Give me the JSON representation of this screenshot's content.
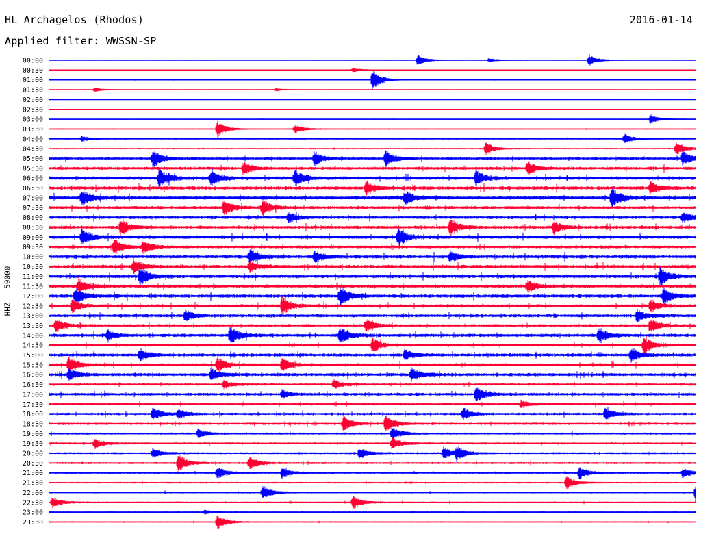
{
  "header": {
    "station": "HL Archagelos (Rhodos)",
    "date": "2016-01-14",
    "filter": "Applied filter: WWSSN-SP"
  },
  "chart_data": {
    "type": "line",
    "title": "HL Archagelos (Rhodos)",
    "subtitle": "Applied filter: WWSSN-SP",
    "ylabel": "HHZ - 50000",
    "xlabel": "",
    "grid": false,
    "legend": "none",
    "series_colors": [
      "#0000ff",
      "#ff0033"
    ],
    "rows": [
      "00:00",
      "00:30",
      "01:00",
      "01:30",
      "02:00",
      "02:30",
      "03:00",
      "03:30",
      "04:00",
      "04:30",
      "05:00",
      "05:30",
      "06:00",
      "06:30",
      "07:00",
      "07:30",
      "08:00",
      "08:30",
      "09:00",
      "09:30",
      "10:00",
      "10:30",
      "11:00",
      "11:30",
      "12:00",
      "12:30",
      "13:00",
      "13:30",
      "14:00",
      "14:30",
      "15:00",
      "15:30",
      "16:00",
      "16:30",
      "17:00",
      "17:30",
      "18:00",
      "18:30",
      "19:00",
      "19:30",
      "20:00",
      "20:30",
      "21:00",
      "21:30",
      "22:00",
      "22:30",
      "23:00",
      "23:30"
    ],
    "noise_level": [
      0.15,
      0.2,
      0.25,
      0.2,
      0.2,
      0.15,
      0.25,
      0.4,
      0.6,
      0.5,
      1.2,
      1.5,
      1.8,
      1.8,
      1.8,
      1.6,
      1.6,
      1.6,
      1.8,
      1.4,
      1.8,
      1.8,
      1.8,
      1.6,
      1.8,
      1.6,
      1.6,
      1.4,
      1.6,
      1.4,
      1.6,
      1.6,
      1.6,
      1.2,
      1.4,
      1.2,
      1.2,
      1.1,
      1.0,
      1.0,
      0.9,
      0.9,
      0.9,
      0.7,
      0.7,
      0.7,
      0.6,
      0.5
    ],
    "events": [
      {
        "row": "00:00",
        "t": 0.57,
        "amp": 8
      },
      {
        "row": "00:00",
        "t": 0.835,
        "amp": 9
      },
      {
        "row": "00:00",
        "t": 0.68,
        "amp": 3
      },
      {
        "row": "00:30",
        "t": 0.47,
        "amp": 3
      },
      {
        "row": "01:00",
        "t": 0.5,
        "amp": 16
      },
      {
        "row": "01:30",
        "t": 0.07,
        "amp": 3
      },
      {
        "row": "01:30",
        "t": 0.35,
        "amp": 2
      },
      {
        "row": "03:00",
        "t": 0.93,
        "amp": 7
      },
      {
        "row": "03:30",
        "t": 0.26,
        "amp": 12
      },
      {
        "row": "03:30",
        "t": 0.38,
        "amp": 6
      },
      {
        "row": "04:00",
        "t": 0.05,
        "amp": 4
      },
      {
        "row": "04:00",
        "t": 0.89,
        "amp": 7
      },
      {
        "row": "04:30",
        "t": 0.675,
        "amp": 9
      },
      {
        "row": "04:30",
        "t": 0.97,
        "amp": 10
      },
      {
        "row": "05:00",
        "t": 0.16,
        "amp": 14
      },
      {
        "row": "05:00",
        "t": 0.41,
        "amp": 10
      },
      {
        "row": "05:00",
        "t": 0.52,
        "amp": 12
      },
      {
        "row": "05:00",
        "t": 0.98,
        "amp": 11
      },
      {
        "row": "05:30",
        "t": 0.3,
        "amp": 9
      },
      {
        "row": "05:30",
        "t": 0.74,
        "amp": 10
      },
      {
        "row": "06:00",
        "t": 0.17,
        "amp": 14
      },
      {
        "row": "06:00",
        "t": 0.25,
        "amp": 12
      },
      {
        "row": "06:00",
        "t": 0.38,
        "amp": 12
      },
      {
        "row": "06:00",
        "t": 0.66,
        "amp": 11
      },
      {
        "row": "06:30",
        "t": 0.49,
        "amp": 10
      },
      {
        "row": "06:30",
        "t": 0.93,
        "amp": 9
      },
      {
        "row": "07:00",
        "t": 0.05,
        "amp": 12
      },
      {
        "row": "07:00",
        "t": 0.55,
        "amp": 10
      },
      {
        "row": "07:00",
        "t": 0.87,
        "amp": 14
      },
      {
        "row": "07:30",
        "t": 0.27,
        "amp": 12
      },
      {
        "row": "07:30",
        "t": 0.33,
        "amp": 11
      },
      {
        "row": "08:00",
        "t": 0.37,
        "amp": 8
      },
      {
        "row": "08:00",
        "t": 0.98,
        "amp": 8
      },
      {
        "row": "08:30",
        "t": 0.11,
        "amp": 13
      },
      {
        "row": "08:30",
        "t": 0.62,
        "amp": 12
      },
      {
        "row": "08:30",
        "t": 0.78,
        "amp": 10
      },
      {
        "row": "09:00",
        "t": 0.05,
        "amp": 11
      },
      {
        "row": "09:00",
        "t": 0.54,
        "amp": 13
      },
      {
        "row": "09:30",
        "t": 0.1,
        "amp": 12
      },
      {
        "row": "09:30",
        "t": 0.145,
        "amp": 9
      },
      {
        "row": "10:00",
        "t": 0.31,
        "amp": 11
      },
      {
        "row": "10:00",
        "t": 0.41,
        "amp": 9
      },
      {
        "row": "10:00",
        "t": 0.62,
        "amp": 8
      },
      {
        "row": "10:30",
        "t": 0.13,
        "amp": 10
      },
      {
        "row": "10:30",
        "t": 0.31,
        "amp": 8
      },
      {
        "row": "11:00",
        "t": 0.14,
        "amp": 13
      },
      {
        "row": "11:00",
        "t": 0.945,
        "amp": 14
      },
      {
        "row": "11:30",
        "t": 0.045,
        "amp": 11
      },
      {
        "row": "11:30",
        "t": 0.74,
        "amp": 9
      },
      {
        "row": "12:00",
        "t": 0.04,
        "amp": 12
      },
      {
        "row": "12:00",
        "t": 0.45,
        "amp": 14
      },
      {
        "row": "12:00",
        "t": 0.95,
        "amp": 12
      },
      {
        "row": "12:30",
        "t": 0.035,
        "amp": 10
      },
      {
        "row": "12:30",
        "t": 0.36,
        "amp": 14
      },
      {
        "row": "12:30",
        "t": 0.93,
        "amp": 9
      },
      {
        "row": "13:00",
        "t": 0.21,
        "amp": 8
      },
      {
        "row": "13:00",
        "t": 0.91,
        "amp": 9
      },
      {
        "row": "13:30",
        "t": 0.01,
        "amp": 10
      },
      {
        "row": "13:30",
        "t": 0.49,
        "amp": 9
      },
      {
        "row": "13:30",
        "t": 0.93,
        "amp": 10
      },
      {
        "row": "14:00",
        "t": 0.09,
        "amp": 7
      },
      {
        "row": "14:00",
        "t": 0.28,
        "amp": 14
      },
      {
        "row": "14:00",
        "t": 0.45,
        "amp": 12
      },
      {
        "row": "14:00",
        "t": 0.85,
        "amp": 10
      },
      {
        "row": "14:30",
        "t": 0.5,
        "amp": 10
      },
      {
        "row": "14:30",
        "t": 0.92,
        "amp": 12
      },
      {
        "row": "15:00",
        "t": 0.14,
        "amp": 9
      },
      {
        "row": "15:00",
        "t": 0.9,
        "amp": 11
      },
      {
        "row": "15:00",
        "t": 0.55,
        "amp": 8
      },
      {
        "row": "15:30",
        "t": 0.03,
        "amp": 12
      },
      {
        "row": "15:30",
        "t": 0.26,
        "amp": 11
      },
      {
        "row": "15:30",
        "t": 0.36,
        "amp": 10
      },
      {
        "row": "16:00",
        "t": 0.03,
        "amp": 8
      },
      {
        "row": "16:00",
        "t": 0.25,
        "amp": 9
      },
      {
        "row": "16:00",
        "t": 0.56,
        "amp": 10
      },
      {
        "row": "16:30",
        "t": 0.27,
        "amp": 6
      },
      {
        "row": "16:30",
        "t": 0.44,
        "amp": 7
      },
      {
        "row": "17:00",
        "t": 0.36,
        "amp": 6
      },
      {
        "row": "17:00",
        "t": 0.66,
        "amp": 11
      },
      {
        "row": "17:30",
        "t": 0.73,
        "amp": 5
      },
      {
        "row": "18:00",
        "t": 0.16,
        "amp": 9
      },
      {
        "row": "18:00",
        "t": 0.2,
        "amp": 7
      },
      {
        "row": "18:00",
        "t": 0.64,
        "amp": 9
      },
      {
        "row": "18:00",
        "t": 0.86,
        "amp": 9
      },
      {
        "row": "18:30",
        "t": 0.455,
        "amp": 11
      },
      {
        "row": "18:30",
        "t": 0.52,
        "amp": 12
      },
      {
        "row": "19:00",
        "t": 0.23,
        "amp": 6
      },
      {
        "row": "19:00",
        "t": 0.53,
        "amp": 10
      },
      {
        "row": "19:30",
        "t": 0.07,
        "amp": 7
      },
      {
        "row": "19:30",
        "t": 0.53,
        "amp": 9
      },
      {
        "row": "20:00",
        "t": 0.16,
        "amp": 7
      },
      {
        "row": "20:00",
        "t": 0.48,
        "amp": 8
      },
      {
        "row": "20:00",
        "t": 0.61,
        "amp": 9
      },
      {
        "row": "20:00",
        "t": 0.63,
        "amp": 10
      },
      {
        "row": "20:30",
        "t": 0.2,
        "amp": 13
      },
      {
        "row": "20:30",
        "t": 0.31,
        "amp": 10
      },
      {
        "row": "21:00",
        "t": 0.26,
        "amp": 9
      },
      {
        "row": "21:00",
        "t": 0.36,
        "amp": 8
      },
      {
        "row": "21:00",
        "t": 0.82,
        "amp": 9
      },
      {
        "row": "21:00",
        "t": 0.98,
        "amp": 7
      },
      {
        "row": "21:30",
        "t": 0.8,
        "amp": 10
      },
      {
        "row": "22:00",
        "t": 0.33,
        "amp": 11
      },
      {
        "row": "22:00",
        "t": 1.0,
        "amp": 14
      },
      {
        "row": "22:30",
        "t": 0.005,
        "amp": 8
      },
      {
        "row": "22:30",
        "t": 0.47,
        "amp": 10
      },
      {
        "row": "23:00",
        "t": 0.24,
        "amp": 3
      },
      {
        "row": "23:30",
        "t": 0.26,
        "amp": 11
      }
    ]
  }
}
